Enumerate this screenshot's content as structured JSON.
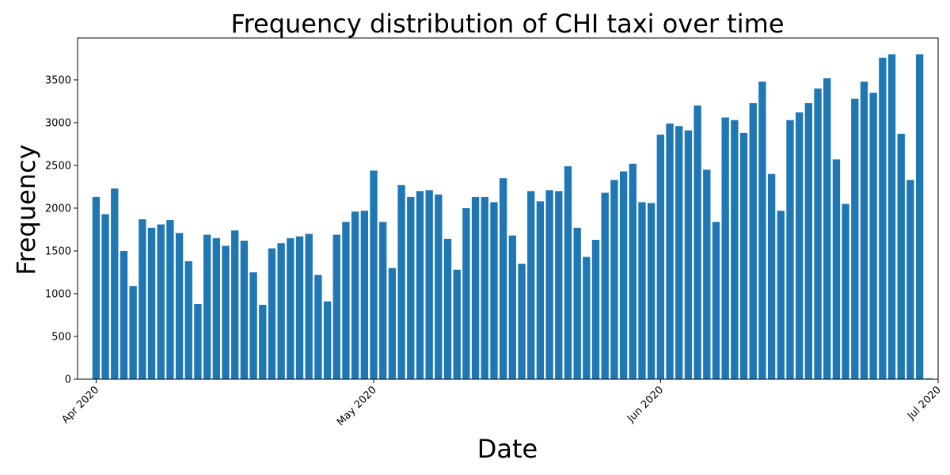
{
  "chart_data": {
    "type": "bar",
    "title": "Frequency distribution of CHI taxi over time",
    "xlabel": "Date",
    "ylabel": "Frequency",
    "bar_color": "#1f77b4",
    "x_range": [
      "2020-03-30",
      "2020-07-01"
    ],
    "ylim": [
      0,
      3990
    ],
    "grid": false,
    "y_ticks": [
      0,
      500,
      1000,
      1500,
      2000,
      2500,
      3000,
      3500
    ],
    "x_ticks": [
      {
        "date": "2020-04-01",
        "label": "Apr 2020"
      },
      {
        "date": "2020-05-01",
        "label": "May 2020"
      },
      {
        "date": "2020-06-01",
        "label": "Jun 2020"
      },
      {
        "date": "2020-07-01",
        "label": "Jul 2020"
      }
    ],
    "start_date": "2020-04-01",
    "values": [
      2130,
      1930,
      2230,
      1500,
      1090,
      1870,
      1770,
      1810,
      1860,
      1710,
      1380,
      880,
      1690,
      1650,
      1560,
      1740,
      1620,
      1250,
      870,
      1530,
      1590,
      1650,
      1670,
      1700,
      1220,
      910,
      1690,
      1840,
      1960,
      1970,
      2440,
      1840,
      1300,
      2270,
      2130,
      2200,
      2210,
      2160,
      1640,
      1280,
      2000,
      2130,
      2130,
      2070,
      2350,
      1680,
      1350,
      2200,
      2080,
      2210,
      2200,
      2490,
      1770,
      1430,
      1630,
      2180,
      2330,
      2430,
      2520,
      2070,
      2060,
      2860,
      2990,
      2960,
      2910,
      3200,
      2450,
      1840,
      3060,
      3030,
      2880,
      3230,
      3480,
      2400,
      1970,
      3030,
      3120,
      3230,
      3400,
      3520,
      2570,
      2050,
      3280,
      3480,
      3350,
      3760,
      3800,
      2870,
      2330,
      3800,
      10
    ]
  }
}
